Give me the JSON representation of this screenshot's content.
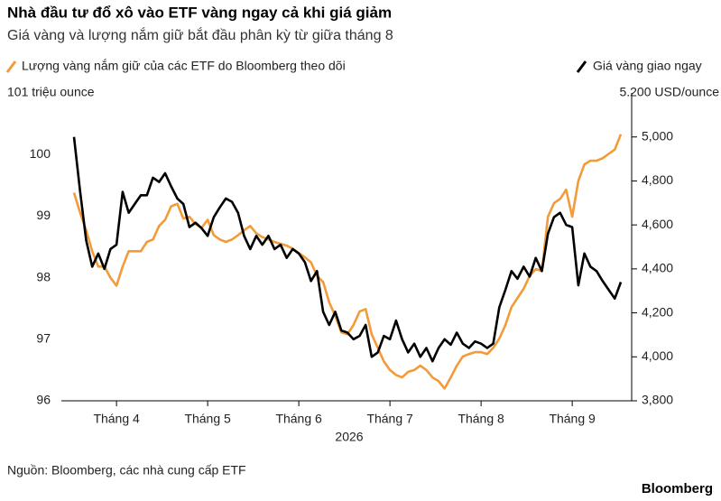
{
  "chart_data": {
    "type": "line",
    "title": "Nhà đầu tư đổ xô vào ETF vàng ngay cả khi giá giảm",
    "subtitle": "Giá vàng và lượng nắm giữ bắt đầu phân kỳ từ giữa tháng 8",
    "xlabel": "2026",
    "source": "Nguồn: Bloomberg, các nhà cung cấp ETF",
    "brand": "Bloomberg",
    "categories": [
      null,
      null,
      null,
      null,
      null,
      null,
      null,
      "Tháng 4",
      null,
      null,
      null,
      null,
      null,
      null,
      null,
      null,
      null,
      null,
      null,
      null,
      null,
      null,
      "Tháng 5",
      null,
      null,
      null,
      null,
      null,
      null,
      null,
      null,
      null,
      null,
      null,
      null,
      null,
      null,
      "Tháng 6",
      null,
      null,
      null,
      null,
      null,
      null,
      null,
      null,
      null,
      null,
      null,
      null,
      null,
      null,
      "Tháng 7",
      null,
      null,
      null,
      null,
      null,
      null,
      null,
      null,
      null,
      null,
      null,
      null,
      null,
      null,
      "Tháng 8",
      null,
      null,
      null,
      null,
      null,
      null,
      null,
      null,
      null,
      null,
      null,
      null,
      null,
      null,
      "Tháng 9",
      null,
      null,
      null,
      null,
      null,
      null,
      null,
      null
    ],
    "series": [
      {
        "name": "Lượng vàng nắm giữ của các ETF do Bloomberg theo dõi",
        "color": "#f29b38",
        "axis": "y",
        "values": [
          99.38,
          99.06,
          98.77,
          98.43,
          98.18,
          98.18,
          98.0,
          97.87,
          98.18,
          98.43,
          98.43,
          98.43,
          98.58,
          98.62,
          98.84,
          98.94,
          99.16,
          99.2,
          98.96,
          98.99,
          98.87,
          98.81,
          98.94,
          98.69,
          98.62,
          98.58,
          98.62,
          98.69,
          98.77,
          98.84,
          98.72,
          98.66,
          98.62,
          98.58,
          98.55,
          98.52,
          98.47,
          98.4,
          98.33,
          98.25,
          98.03,
          97.93,
          97.6,
          97.38,
          97.11,
          97.08,
          97.23,
          97.45,
          97.49,
          97.08,
          96.86,
          96.64,
          96.5,
          96.42,
          96.38,
          96.47,
          96.5,
          96.57,
          96.5,
          96.38,
          96.32,
          96.2,
          96.38,
          96.57,
          96.72,
          96.76,
          96.79,
          96.79,
          96.76,
          96.86,
          97.01,
          97.23,
          97.52,
          97.67,
          97.82,
          98.03,
          98.14,
          98.11,
          98.99,
          99.21,
          99.28,
          99.43,
          98.99,
          99.57,
          99.84,
          99.9,
          99.9,
          99.94,
          100.01,
          100.08,
          100.33
        ]
      },
      {
        "name": "Giá vàng giao ngay",
        "color": "#000000",
        "axis": "y2",
        "values": [
          5000,
          4755,
          4530,
          4410,
          4470,
          4400,
          4490,
          4510,
          4750,
          4655,
          4695,
          4735,
          4735,
          4815,
          4795,
          4835,
          4775,
          4720,
          4695,
          4590,
          4610,
          4585,
          4550,
          4635,
          4680,
          4720,
          4705,
          4655,
          4550,
          4490,
          4550,
          4510,
          4550,
          4490,
          4510,
          4450,
          4490,
          4470,
          4430,
          4345,
          4390,
          4205,
          4145,
          4205,
          4120,
          4110,
          4080,
          4095,
          4145,
          4000,
          4020,
          4095,
          4080,
          4165,
          4080,
          4020,
          4060,
          4000,
          4040,
          3980,
          4040,
          4080,
          4055,
          4110,
          4060,
          4040,
          4070,
          4060,
          4040,
          4060,
          4225,
          4305,
          4390,
          4355,
          4410,
          4365,
          4450,
          4390,
          4560,
          4635,
          4655,
          4600,
          4590,
          4325,
          4470,
          4410,
          4390,
          4345,
          4305,
          4265,
          4340
        ]
      }
    ],
    "ylim": [
      96,
      101
    ],
    "yticks": [
      {
        "value": 101,
        "label": "101 triệu ounce"
      },
      100,
      99,
      98,
      97,
      96
    ],
    "y2lim": [
      3800,
      5200
    ],
    "y2ticks": [
      {
        "value": 5200,
        "label": "5.200 USD/ounce"
      },
      {
        "value": 5000,
        "label": "5,000"
      },
      {
        "value": 4800,
        "label": "4,800"
      },
      {
        "value": 4600,
        "label": "4,600"
      },
      {
        "value": 4400,
        "label": "4,400"
      },
      {
        "value": 4200,
        "label": "4,200"
      },
      {
        "value": 4000,
        "label": "4,000"
      },
      {
        "value": 3800,
        "label": "3,800"
      }
    ]
  }
}
